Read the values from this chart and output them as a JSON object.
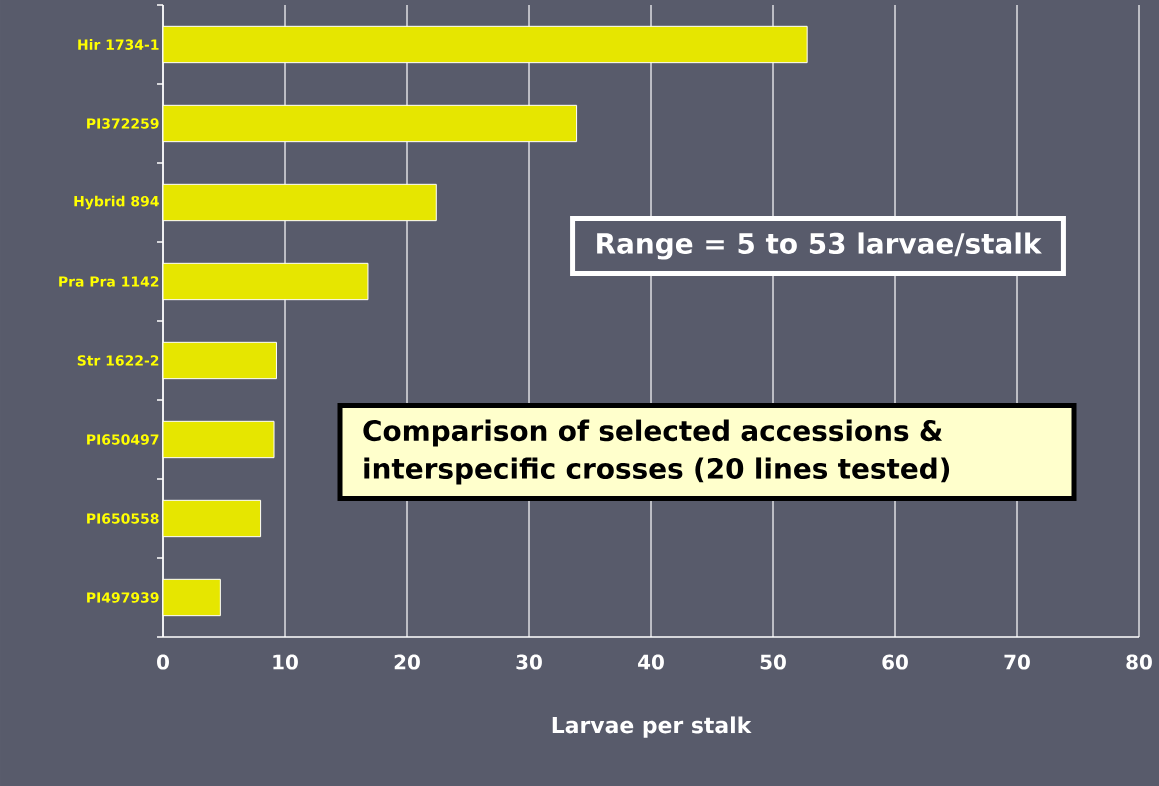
{
  "chart_data": {
    "type": "bar",
    "orientation": "horizontal",
    "categories": [
      "Hir 1734-1",
      "PI372259",
      "Hybrid 894",
      "Pra Pra 1142",
      "Str 1622-2",
      "PI650497",
      "PI650558",
      "PI497939"
    ],
    "values": [
      52.8,
      33.9,
      22.4,
      16.8,
      9.3,
      9.1,
      8.0,
      4.7
    ],
    "color": "#e6e600",
    "xlabel": "Larvae per stalk",
    "xlim": [
      0,
      80
    ],
    "xticks": [
      0,
      10,
      20,
      30,
      40,
      50,
      60,
      70,
      80
    ],
    "grid": "x",
    "annotations": [
      "Range = 5 to 53 larvae/stalk",
      "Comparison of selected accessions & interspecific crosses (20 lines tested)"
    ]
  }
}
